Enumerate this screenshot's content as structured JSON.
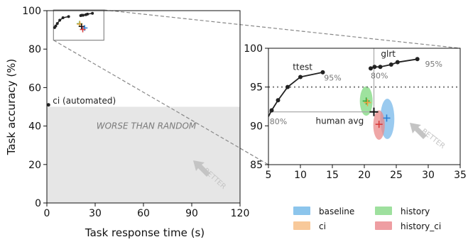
{
  "chart_data": [
    {
      "id": "main",
      "type": "scatter",
      "xlabel": "Task response time (s)",
      "ylabel": "Task accuracy (%)",
      "xlim": [
        0,
        120
      ],
      "ylim": [
        0,
        100
      ],
      "xticks": [
        0,
        30,
        60,
        90,
        120
      ],
      "yticks": [
        0,
        20,
        40,
        60,
        80,
        100
      ],
      "ci_point": {
        "x": 1,
        "y": 51,
        "label": "ci (automated)"
      },
      "worse_region": {
        "x": [
          0,
          120
        ],
        "y": [
          0,
          50
        ],
        "label": "WORSE THAN RANDOM"
      },
      "better_label": "BETTER",
      "zoom_box": {
        "x": [
          5,
          35
        ],
        "y": [
          85,
          100
        ]
      },
      "ttest_curve": [
        [
          4.8,
          91.2
        ],
        [
          5.5,
          92
        ],
        [
          6.5,
          93.3
        ],
        [
          8,
          95
        ],
        [
          10,
          96.3
        ],
        [
          13.5,
          96.9
        ]
      ],
      "glrt_curve": [
        [
          21,
          97.4
        ],
        [
          21.6,
          97.6
        ],
        [
          22.5,
          97.6
        ],
        [
          24.2,
          97.9
        ],
        [
          25.2,
          98.2
        ],
        [
          28.3,
          98.6
        ]
      ],
      "markers": [
        {
          "series": "history",
          "x": 20.3,
          "y": 93.2
        },
        {
          "series": "ci",
          "x": 20.5,
          "y": 93.0
        },
        {
          "series": "human avg",
          "x": 21.5,
          "y": 91.8
        },
        {
          "series": "baseline",
          "x": 23.5,
          "y": 91.0
        },
        {
          "series": "history_ci",
          "x": 22.3,
          "y": 90.2
        }
      ]
    },
    {
      "id": "inset",
      "type": "line",
      "xlim": [
        5,
        35
      ],
      "ylim": [
        85,
        100
      ],
      "xticks": [
        5,
        10,
        15,
        20,
        25,
        30,
        35
      ],
      "yticks": [
        85,
        90,
        95,
        100
      ],
      "hline_y": 95,
      "ttest": {
        "label": "ttest",
        "points": [
          [
            4.8,
            91.2
          ],
          [
            5.5,
            92
          ],
          [
            6.5,
            93.3
          ],
          [
            8,
            95
          ],
          [
            10,
            96.3
          ],
          [
            13.5,
            96.9
          ]
        ],
        "pct_labels": [
          {
            "text": "95%",
            "x": 13.7,
            "y": 96.2
          },
          {
            "text": "80%",
            "x": 5.2,
            "y": 90.6
          }
        ]
      },
      "glrt": {
        "label": "glrt",
        "points": [
          [
            21,
            97.4
          ],
          [
            21.6,
            97.6
          ],
          [
            22.5,
            97.6
          ],
          [
            24.2,
            97.9
          ],
          [
            25.2,
            98.2
          ],
          [
            28.3,
            98.6
          ]
        ],
        "pct_labels": [
          {
            "text": "95%",
            "x": 29.5,
            "y": 98.0
          },
          {
            "text": "80%",
            "x": 21.0,
            "y": 96.5
          }
        ]
      },
      "human_avg": {
        "label": "human avg",
        "x": 21.5,
        "y": 91.8
      },
      "ellipses": [
        {
          "series": "history",
          "cx": 20.3,
          "cy": 93.2,
          "rx": 1.0,
          "ry": 1.9,
          "color": "#7dd87d"
        },
        {
          "series": "baseline",
          "cx": 23.6,
          "cy": 90.9,
          "rx": 1.1,
          "ry": 2.6,
          "color": "#78b8ea"
        },
        {
          "series": "history_ci",
          "cx": 22.3,
          "cy": 90.1,
          "rx": 0.9,
          "ry": 1.9,
          "color": "#ea8a8a"
        }
      ],
      "markers": [
        {
          "series": "history",
          "x": 20.3,
          "y": 93.2,
          "color": "#3aa83a"
        },
        {
          "series": "ci",
          "x": 20.5,
          "y": 93.0,
          "color": "#f0a040"
        },
        {
          "series": "baseline",
          "x": 23.5,
          "y": 91.0,
          "color": "#2a7fd4"
        },
        {
          "series": "history_ci",
          "x": 22.3,
          "y": 90.2,
          "color": "#d63a3a"
        }
      ],
      "better_label": "BETTER"
    }
  ],
  "legend": [
    {
      "label": "baseline",
      "color": "#8cc5ec"
    },
    {
      "label": "history",
      "color": "#9ee09e"
    },
    {
      "label": "ci",
      "color": "#f8c99a"
    },
    {
      "label": "history_ci",
      "color": "#ee9ea2"
    }
  ]
}
